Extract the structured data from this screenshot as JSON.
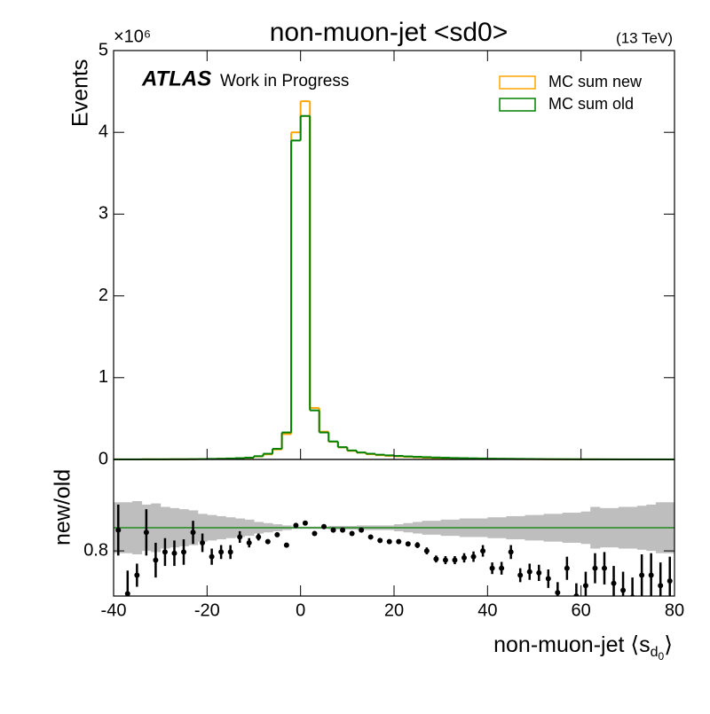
{
  "chart_data": [
    {
      "type": "histogram",
      "title": "non-muon-jet <sd0>",
      "energy": "(13 TeV)",
      "multiplier": "×10⁶",
      "ylabel": "Events",
      "atlas": "ATLAS",
      "atlas_tag": "Work in Progress",
      "legend": "upper right",
      "bins": [
        -40,
        -38,
        -36,
        -34,
        -32,
        -30,
        -28,
        -26,
        -24,
        -22,
        -20,
        -18,
        -16,
        -14,
        -12,
        -10,
        -8,
        -6,
        -4,
        -2,
        0,
        2,
        4,
        6,
        8,
        10,
        12,
        14,
        16,
        18,
        20,
        22,
        24,
        26,
        28,
        30,
        32,
        34,
        36,
        38,
        40,
        42,
        44,
        46,
        48,
        50,
        52,
        54,
        56,
        58,
        60,
        62,
        64,
        66,
        68,
        70,
        72,
        74,
        76,
        78,
        80
      ],
      "series": [
        {
          "name": "MC sum new",
          "color": "#ffa500",
          "values": [
            0.001,
            0.0005,
            0.0006,
            0.002,
            0.0014,
            0.0015,
            0.0024,
            0.0024,
            0.0032,
            0.0045,
            0.006,
            0.007,
            0.0095,
            0.0147,
            0.019,
            0.037,
            0.062,
            0.122,
            0.31,
            4.0,
            4.38,
            0.63,
            0.34,
            0.216,
            0.147,
            0.105,
            0.083,
            0.064,
            0.052,
            0.044,
            0.038,
            0.032,
            0.027,
            0.022,
            0.0175,
            0.015,
            0.013,
            0.012,
            0.0105,
            0.0096,
            0.0065,
            0.0058,
            0.0063,
            0.0041,
            0.0037,
            0.003,
            0.0022,
            0.0017,
            0.0013,
            0.0013,
            0.001,
            0.0012,
            0.001,
            0.0007,
            0.0005,
            0.0004,
            0.0005,
            0.0005,
            0.0004,
            0.0003
          ]
        },
        {
          "name": "MC sum old",
          "color": "#008000",
          "values": [
            0.001,
            0.001,
            0.001,
            0.002,
            0.002,
            0.002,
            0.003,
            0.003,
            0.004,
            0.005,
            0.007,
            0.009,
            0.012,
            0.016,
            0.022,
            0.04,
            0.07,
            0.13,
            0.33,
            3.9,
            4.2,
            0.6,
            0.33,
            0.22,
            0.15,
            0.11,
            0.085,
            0.07,
            0.058,
            0.05,
            0.043,
            0.037,
            0.032,
            0.028,
            0.024,
            0.021,
            0.018,
            0.016,
            0.014,
            0.012,
            0.01,
            0.009,
            0.008,
            0.007,
            0.006,
            0.005,
            0.004,
            0.0035,
            0.003,
            0.0025,
            0.002,
            0.0018,
            0.0015,
            0.0013,
            0.0011,
            0.001,
            0.0009,
            0.0008,
            0.0007,
            0.0006
          ]
        }
      ],
      "xlim": [
        -40,
        80
      ],
      "ylim": [
        0,
        5
      ],
      "yticks": [
        0,
        1,
        2,
        3,
        4,
        5
      ]
    },
    {
      "type": "errorbar",
      "ylabel": "new/old",
      "xlabel": [
        "non-muon-jet ⟨s",
        "d",
        "0",
        "⟩"
      ],
      "x": [
        -39,
        -37,
        -35,
        -33,
        -31,
        -29,
        -27,
        -25,
        -23,
        -21,
        -19,
        -17,
        -15,
        -13,
        -11,
        -9,
        -7,
        -5,
        -3,
        -1,
        1,
        3,
        5,
        7,
        9,
        11,
        13,
        15,
        17,
        19,
        21,
        23,
        25,
        27,
        29,
        31,
        33,
        35,
        37,
        39,
        41,
        43,
        45,
        47,
        49,
        51,
        53,
        55,
        57,
        59,
        61,
        63,
        65,
        67,
        69,
        71,
        73,
        75,
        77,
        79
      ],
      "values": [
        0.98,
        0.43,
        0.59,
        0.96,
        0.72,
        0.79,
        0.78,
        0.79,
        0.96,
        0.87,
        0.75,
        0.79,
        0.79,
        0.92,
        0.87,
        0.92,
        0.88,
        0.94,
        0.85,
        1.02,
        1.04,
        0.95,
        1.01,
        0.98,
        0.98,
        0.95,
        0.98,
        0.92,
        0.89,
        0.88,
        0.88,
        0.86,
        0.85,
        0.8,
        0.73,
        0.72,
        0.72,
        0.74,
        0.75,
        0.8,
        0.65,
        0.65,
        0.79,
        0.59,
        0.62,
        0.61,
        0.56,
        0.44,
        0.65,
        0.41,
        0.5,
        0.65,
        0.65,
        0.52,
        0.46,
        0.4,
        0.59,
        0.59,
        0.5,
        0.54
      ],
      "errors": [
        0.22,
        0.2,
        0.1,
        0.2,
        0.15,
        0.12,
        0.11,
        0.11,
        0.1,
        0.08,
        0.07,
        0.06,
        0.06,
        0.05,
        0.04,
        0.03,
        0.02,
        0.015,
        0.01,
        0.005,
        0.005,
        0.01,
        0.01,
        0.01,
        0.01,
        0.01,
        0.015,
        0.015,
        0.015,
        0.02,
        0.02,
        0.02,
        0.025,
        0.03,
        0.03,
        0.035,
        0.035,
        0.04,
        0.045,
        0.05,
        0.05,
        0.055,
        0.06,
        0.06,
        0.07,
        0.07,
        0.08,
        0.09,
        0.1,
        0.11,
        0.12,
        0.13,
        0.14,
        0.15,
        0.16,
        0.17,
        0.18,
        0.19,
        0.2,
        0.21
      ],
      "band": [
        0.22,
        0.22,
        0.23,
        0.2,
        0.21,
        0.18,
        0.17,
        0.16,
        0.15,
        0.12,
        0.11,
        0.1,
        0.09,
        0.08,
        0.07,
        0.05,
        0.04,
        0.03,
        0.02,
        0.01,
        0.01,
        0.01,
        0.01,
        0.015,
        0.015,
        0.015,
        0.02,
        0.02,
        0.02,
        0.02,
        0.03,
        0.04,
        0.05,
        0.06,
        0.06,
        0.07,
        0.07,
        0.08,
        0.08,
        0.08,
        0.09,
        0.09,
        0.1,
        0.1,
        0.11,
        0.11,
        0.12,
        0.12,
        0.13,
        0.13,
        0.14,
        0.18,
        0.17,
        0.17,
        0.18,
        0.18,
        0.19,
        0.2,
        0.22,
        0.22
      ],
      "band_color": "#bebebe",
      "hline": 1,
      "line_color": "#008000",
      "xlim": [
        -40,
        80
      ],
      "ylim": [
        0.41,
        1.59
      ],
      "yticks": [
        0.8
      ],
      "xticks": [
        -40,
        -20,
        0,
        20,
        40,
        60,
        80
      ]
    }
  ]
}
